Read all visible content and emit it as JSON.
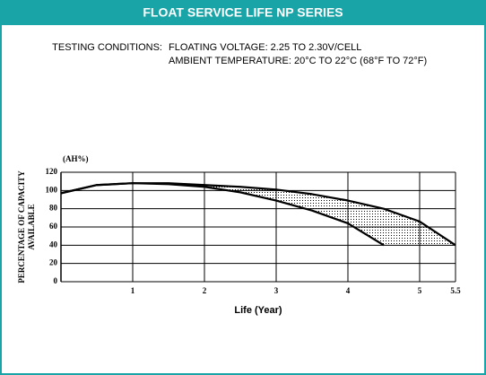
{
  "chart_data": {
    "type": "line",
    "title": "FLOAT SERVICE LIFE NP SERIES",
    "annotations": [
      "TESTING CONDITIONS:",
      "FLOATING VOLTAGE: 2.25 TO 2.30V/CELL",
      "AMBIENT TEMPERATURE: 20°C TO 22°C (68°F TO 72°F)"
    ],
    "y_label": [
      "PERCENTAGE OF CAPACITY",
      "AVAILABLE"
    ],
    "y_unit": "(AH%)",
    "x_label": "Life (Year)",
    "x": [
      0,
      0.5,
      1,
      1.5,
      2,
      2.5,
      3,
      3.5,
      4,
      4.5,
      5,
      5.5
    ],
    "series": [
      {
        "color": "#000000",
        "values": [
          97,
          106,
          108,
          108,
          106,
          104,
          101,
          96,
          89,
          80,
          66,
          40
        ]
      },
      {
        "color": "#000000",
        "values": [
          97,
          106,
          108,
          107,
          104,
          98,
          89,
          78,
          64,
          40,
          null,
          null
        ]
      }
    ],
    "xlim": [
      0,
      5.5
    ],
    "xticks": [
      1,
      2,
      3,
      4,
      5,
      5.5
    ],
    "ylim": [
      0,
      120
    ],
    "yticks": [
      0,
      20,
      40,
      60,
      80,
      100,
      120
    ],
    "grid": true
  }
}
